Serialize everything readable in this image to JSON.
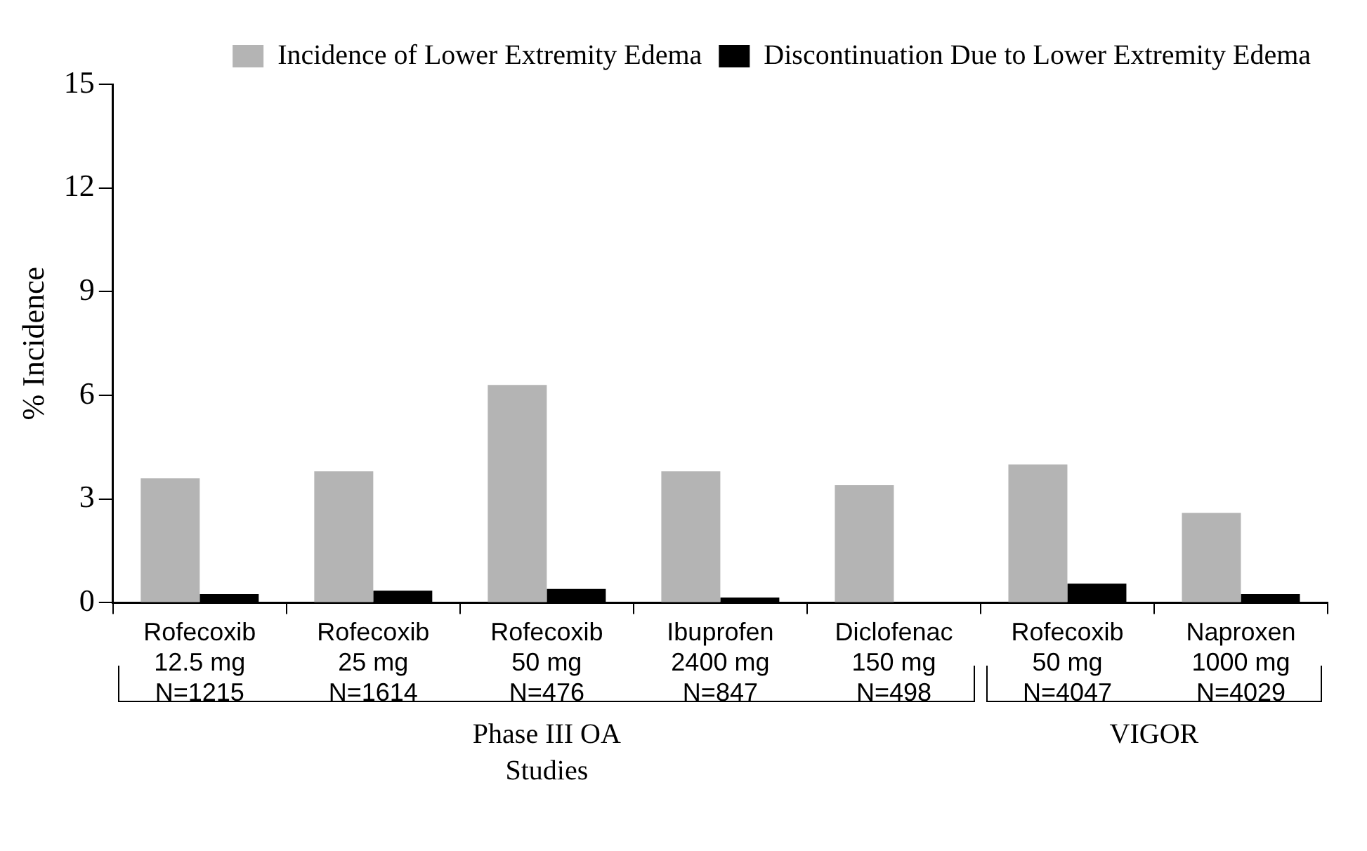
{
  "chart_data": {
    "type": "bar",
    "ylabel": "% Incidence",
    "categories": [
      "Rofecoxib\n12.5 mg\nN=1215",
      "Rofecoxib\n25 mg\nN=1614",
      "Rofecoxib\n50 mg\nN=476",
      "Ibuprofen\n2400 mg\nN=847",
      "Diclofenac\n150 mg\nN=498",
      "Rofecoxib\n50 mg\nN=4047",
      "Naproxen\n1000 mg\nN=4029"
    ],
    "series": [
      {
        "name": "Incidence of Lower Extremity Edema",
        "color": "#b4b4b4",
        "values": [
          3.6,
          3.8,
          6.3,
          3.8,
          3.4,
          4.0,
          2.6
        ]
      },
      {
        "name": "Discontinuation Due to Lower Extremity Edema",
        "color": "#000000",
        "values": [
          0.25,
          0.35,
          0.4,
          0.15,
          null,
          0.55,
          0.25
        ]
      }
    ],
    "ylim": [
      0,
      15
    ],
    "yticks": [
      0,
      3,
      6,
      9,
      12,
      15
    ],
    "grid": false,
    "legend": "top right",
    "annotations": [
      "Phase III OA\nStudies",
      "VIGOR"
    ]
  }
}
